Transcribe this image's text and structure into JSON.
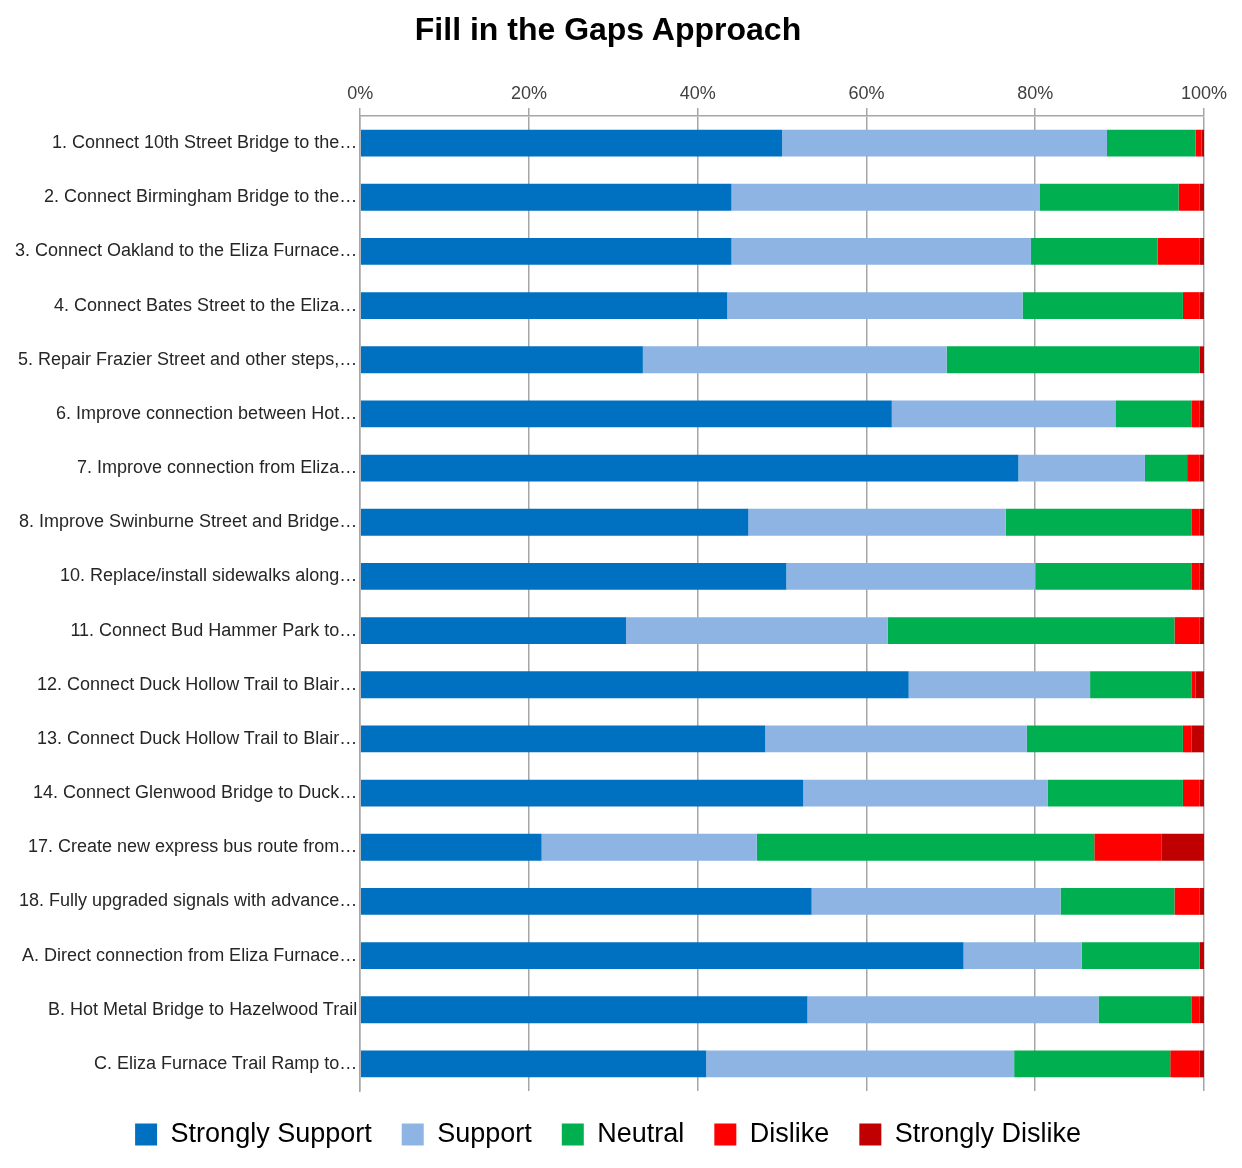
{
  "chart_data": {
    "type": "bar",
    "orientation": "horizontal",
    "stacked": true,
    "title": "Fill in the Gaps Approach",
    "categories": [
      "1. Connect 10th Street Bridge to the…",
      "2. Connect Birmingham Bridge to the…",
      "3. Connect Oakland to the Eliza Furnace…",
      "4. Connect Bates Street to the Eliza…",
      "5. Repair Frazier Street and other steps,…",
      "6. Improve connection between Hot…",
      "7. Improve connection from Eliza…",
      "8. Improve Swinburne Street and Bridge…",
      "10. Replace/install sidewalks along…",
      "11. Connect Bud Hammer Park to…",
      "12. Connect Duck Hollow Trail to Blair…",
      "13. Connect Duck Hollow Trail to Blair…",
      "14. Connect Glenwood Bridge to Duck…",
      "17. Create new express bus route from…",
      "18. Fully upgraded signals with advance…",
      "A. Direct connection from Eliza Furnace…",
      "B. Hot Metal Bridge to Hazelwood Trail",
      "C. Eliza Furnace Trail Ramp to…"
    ],
    "series": [
      {
        "name": "Strongly Support",
        "color": "#0070c0",
        "values": [
          50,
          44,
          44,
          43.5,
          33.5,
          63,
          78,
          46,
          50.5,
          31.5,
          65,
          48,
          52.5,
          21.5,
          53.5,
          71.5,
          53,
          41
        ]
      },
      {
        "name": "Support",
        "color": "#8db4e2",
        "values": [
          38.5,
          36.5,
          35.5,
          35,
          36,
          26.5,
          15,
          30.5,
          29.5,
          31,
          21.5,
          31,
          29,
          25.5,
          29.5,
          14,
          34.5,
          36.5
        ]
      },
      {
        "name": "Neutral",
        "color": "#00b050",
        "values": [
          10.5,
          16.5,
          15,
          19,
          30,
          9,
          5,
          22,
          18.5,
          34,
          12,
          18.5,
          16,
          40,
          13.5,
          14,
          11,
          18.5
        ]
      },
      {
        "name": "Dislike",
        "color": "#ff0000",
        "values": [
          0.7,
          2.5,
          5,
          2,
          0,
          1,
          1.5,
          1,
          1,
          3,
          0.5,
          1,
          2,
          8,
          3,
          0,
          1,
          3.5
        ]
      },
      {
        "name": "Strongly Dislike",
        "color": "#c00000",
        "values": [
          0.3,
          0.5,
          0.5,
          0.5,
          0.5,
          0.5,
          0.5,
          0.5,
          0.5,
          0.5,
          1,
          1.5,
          0.5,
          5,
          0.5,
          0.5,
          0.5,
          0.5
        ]
      }
    ],
    "xlim": [
      0,
      100
    ],
    "xticks": [
      {
        "value": 0,
        "label": "0%"
      },
      {
        "value": 20,
        "label": "20%"
      },
      {
        "value": 40,
        "label": "40%"
      },
      {
        "value": 60,
        "label": "60%"
      },
      {
        "value": 80,
        "label": "80%"
      },
      {
        "value": 100,
        "label": "100%"
      }
    ],
    "grid": "x",
    "legend": "bottom"
  }
}
